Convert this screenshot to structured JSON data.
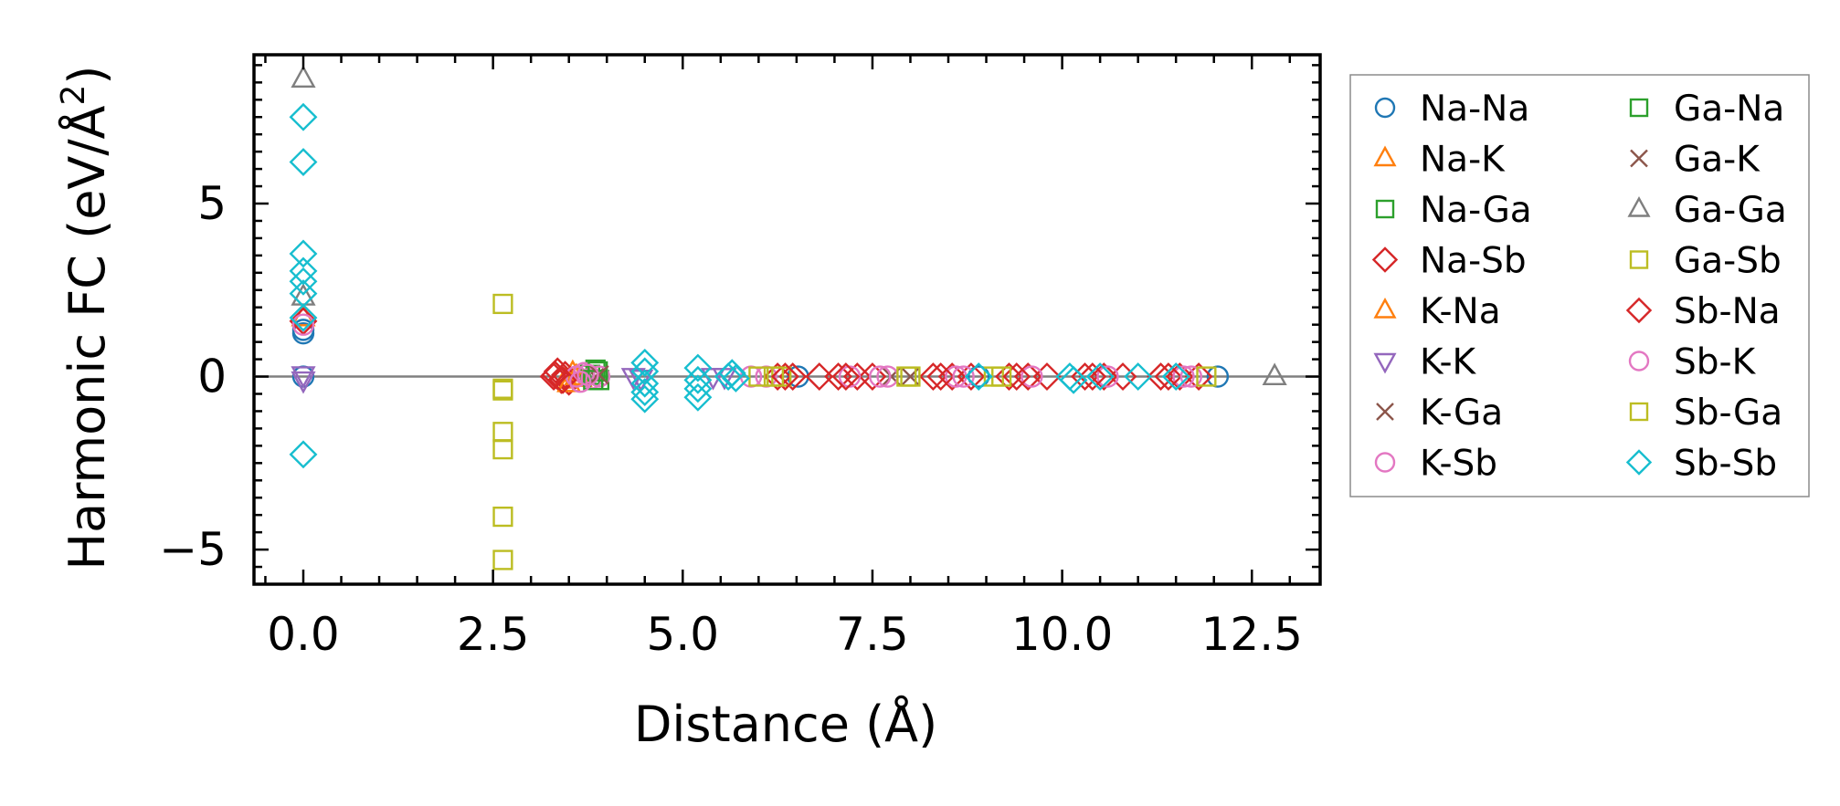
{
  "chart_data": {
    "type": "scatter",
    "title": "",
    "xlabel": "Distance (Å)",
    "ylabel": "Harmonic FC (eV/Å²)",
    "ylabel_main": "Harmonic FC (eV/Å",
    "ylabel_sup": "2",
    "ylabel_end": ")",
    "xlim": [
      -0.65,
      13.4
    ],
    "ylim": [
      -6.0,
      9.3
    ],
    "xticks": [
      0.0,
      2.5,
      5.0,
      7.5,
      10.0,
      12.5
    ],
    "xtick_labels": [
      "0.0",
      "2.5",
      "5.0",
      "7.5",
      "10.0",
      "12.5"
    ],
    "yticks": [
      -5,
      0,
      5
    ],
    "ytick_labels": [
      "−5",
      "0",
      "5"
    ],
    "grid": false,
    "zero_line": true,
    "legend_position": "outside-right",
    "series": [
      {
        "name": "Na-Na",
        "marker": "circle",
        "color": "#1f77b4",
        "x": [
          0.0,
          0.0,
          0.0,
          6.52,
          8.9,
          12.05
        ],
        "y": [
          1.25,
          1.35,
          0.0,
          0.0,
          0.0,
          0.0
        ]
      },
      {
        "name": "Na-K",
        "marker": "triangle-up",
        "color": "#ff7f0e",
        "x": [
          0.0,
          3.45,
          3.55,
          3.65
        ],
        "y": [
          1.7,
          -0.1,
          0.1,
          -0.05
        ]
      },
      {
        "name": "Na-Ga",
        "marker": "square",
        "color": "#2ca02c",
        "x": [
          3.78,
          3.85,
          3.9
        ],
        "y": [
          0.05,
          0.2,
          -0.1
        ]
      },
      {
        "name": "Na-Sb",
        "marker": "diamond",
        "color": "#d62728",
        "x": [
          0.0,
          3.3,
          3.35,
          3.4,
          3.45,
          3.5,
          6.25,
          6.45,
          6.8,
          7.05,
          7.3,
          7.5,
          8.3,
          8.55,
          8.8,
          9.3,
          9.55,
          9.8,
          10.3,
          10.55,
          10.8,
          11.3,
          11.55,
          11.8
        ],
        "y": [
          1.6,
          0.0,
          0.15,
          -0.1,
          0.05,
          -0.15,
          0.0,
          0.0,
          0.0,
          0.0,
          0.0,
          0.0,
          0.0,
          0.0,
          0.0,
          0.0,
          0.0,
          0.0,
          0.0,
          0.0,
          0.0,
          0.0,
          0.0,
          0.0
        ]
      },
      {
        "name": "K-Na",
        "marker": "triangle-up",
        "color": "#ff7f0e",
        "x": [
          3.5,
          3.6
        ],
        "y": [
          -0.2,
          0.0
        ]
      },
      {
        "name": "K-K",
        "marker": "triangle-down",
        "color": "#9467bd",
        "x": [
          0.0,
          0.0,
          4.35,
          4.45,
          5.4,
          5.55
        ],
        "y": [
          0.05,
          -0.1,
          0.0,
          -0.05,
          0.0,
          0.0
        ]
      },
      {
        "name": "K-Ga",
        "marker": "x",
        "color": "#8c564b",
        "x": [
          3.85,
          7.75
        ],
        "y": [
          0.0,
          0.0
        ]
      },
      {
        "name": "K-Sb",
        "marker": "circle",
        "color": "#e377c2",
        "x": [
          0.0,
          3.6,
          3.7,
          3.8,
          3.9,
          5.9,
          6.1,
          7.2,
          7.7,
          8.6,
          9.6,
          10.6,
          11.6
        ],
        "y": [
          1.5,
          0.0,
          0.1,
          -0.05,
          0.0,
          0.0,
          0.0,
          0.0,
          0.0,
          0.0,
          0.0,
          0.0,
          0.0
        ]
      },
      {
        "name": "Ga-Na",
        "marker": "square",
        "color": "#2ca02c",
        "x": [
          3.82,
          3.88
        ],
        "y": [
          -0.1,
          0.15
        ]
      },
      {
        "name": "Ga-K",
        "marker": "x",
        "color": "#8c564b",
        "x": [
          3.9,
          8.0
        ],
        "y": [
          0.05,
          0.0
        ]
      },
      {
        "name": "Ga-Ga",
        "marker": "triangle-up",
        "color": "#7f7f7f",
        "x": [
          0.0,
          0.0,
          12.8
        ],
        "y": [
          8.6,
          2.3,
          0.0
        ]
      },
      {
        "name": "Ga-Sb",
        "marker": "square",
        "color": "#bcbd22",
        "x": [
          2.63,
          2.63,
          2.63,
          2.63,
          2.63,
          2.63,
          6.0,
          6.3,
          8.0,
          9.1
        ],
        "y": [
          2.1,
          -0.35,
          -1.6,
          -2.1,
          -4.05,
          -5.3,
          0.0,
          0.0,
          0.0,
          0.0
        ]
      },
      {
        "name": "Sb-Na",
        "marker": "diamond",
        "color": "#d62728",
        "x": [
          3.32,
          3.42,
          6.35,
          7.15,
          8.4,
          9.4,
          10.4,
          11.4
        ],
        "y": [
          0.05,
          -0.1,
          0.0,
          0.0,
          0.0,
          0.0,
          0.0,
          0.0
        ]
      },
      {
        "name": "Sb-K",
        "marker": "circle",
        "color": "#e377c2",
        "x": [
          3.65,
          3.75,
          7.6,
          8.7,
          11.7
        ],
        "y": [
          -0.15,
          0.05,
          0.0,
          0.0,
          0.0
        ]
      },
      {
        "name": "Sb-Ga",
        "marker": "square",
        "color": "#bcbd22",
        "x": [
          2.63,
          6.2,
          7.95,
          9.2,
          11.9
        ],
        "y": [
          -0.4,
          0.0,
          0.0,
          0.0,
          0.0
        ]
      },
      {
        "name": "Sb-Sb",
        "marker": "diamond",
        "color": "#17becf",
        "x": [
          0.0,
          0.0,
          0.0,
          0.0,
          0.0,
          0.0,
          0.0,
          0.0,
          4.5,
          4.5,
          4.5,
          4.5,
          4.5,
          5.2,
          5.2,
          5.2,
          5.2,
          5.6,
          5.65,
          5.7,
          8.9,
          10.1,
          10.15,
          10.5,
          11.0,
          11.5
        ],
        "y": [
          7.5,
          6.2,
          3.55,
          3.05,
          2.75,
          2.4,
          1.7,
          -2.25,
          0.4,
          0.15,
          -0.2,
          -0.45,
          -0.65,
          0.25,
          -0.1,
          -0.35,
          -0.6,
          0.0,
          0.1,
          -0.05,
          0.0,
          0.0,
          -0.1,
          0.0,
          0.0,
          0.0
        ]
      }
    ]
  }
}
